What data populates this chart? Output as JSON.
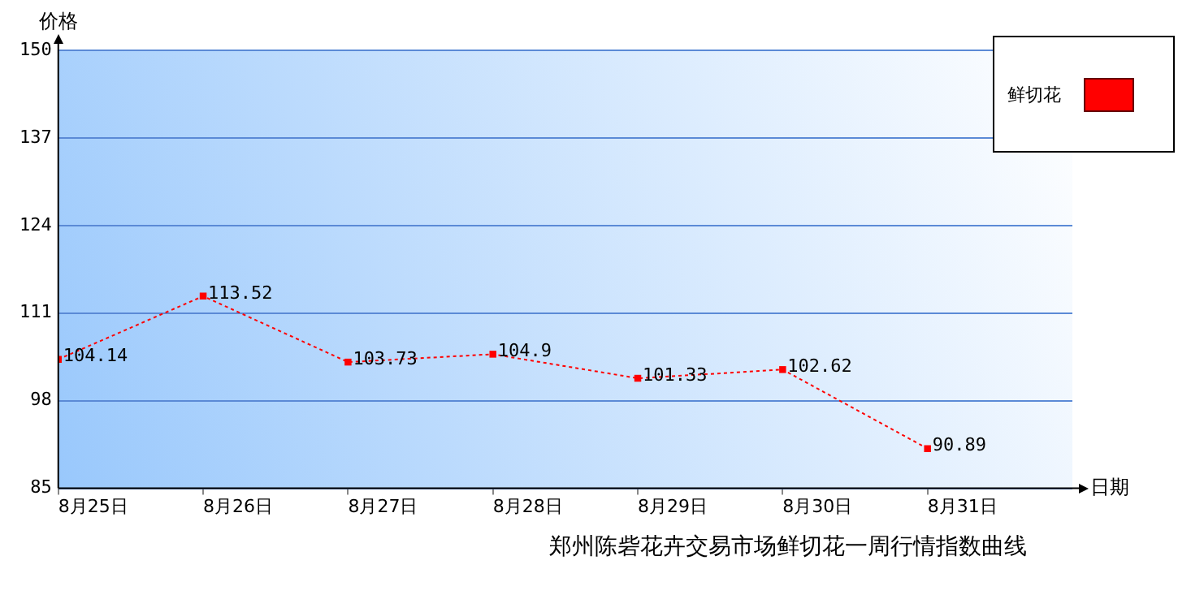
{
  "chart_data": {
    "type": "line",
    "title": "郑州陈砦花卉交易市场鲜切花一周行情指数曲线",
    "xlabel": "日期",
    "ylabel": "价格",
    "categories": [
      "8月25日",
      "8月26日",
      "8月27日",
      "8月28日",
      "8月29日",
      "8月30日",
      "8月31日"
    ],
    "series": [
      {
        "name": "鲜切花",
        "color": "#ff0000",
        "values": [
          104.14,
          113.52,
          103.73,
          104.9,
          101.33,
          102.62,
          90.89
        ]
      }
    ],
    "ylim": [
      85,
      150
    ],
    "yticks": [
      85,
      98,
      111,
      124,
      137,
      150
    ],
    "grid": "y",
    "legend": "top right",
    "marker": "square",
    "line_style": "dotted",
    "data_labels": true
  }
}
